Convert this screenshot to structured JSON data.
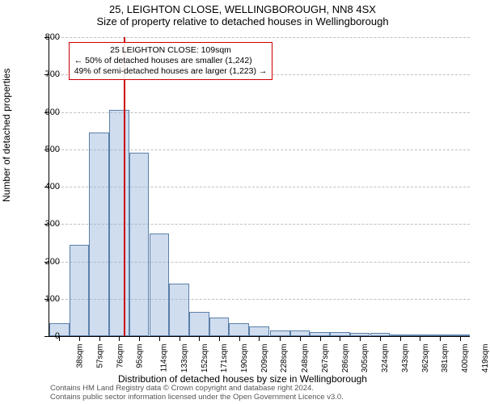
{
  "title": "25, LEIGHTON CLOSE, WELLINGBOROUGH, NN8 4SX",
  "subtitle": "Size of property relative to detached houses in Wellingborough",
  "y_axis_title": "Number of detached properties",
  "x_axis_title": "Distribution of detached houses by size in Wellingborough",
  "footer_line1": "Contains HM Land Registry data © Crown copyright and database right 2024.",
  "footer_line2": "Contains public sector information licensed under the Open Government Licence v3.0.",
  "annotation": {
    "line1": "25 LEIGHTON CLOSE: 109sqm",
    "line2": "← 50% of detached houses are smaller (1,242)",
    "line3": "49% of semi-detached houses are larger (1,223) →"
  },
  "vline_value_sqm": 109,
  "vline_color": "#cc0000",
  "chart": {
    "type": "histogram",
    "bar_fill": "rgba(150,180,220,0.45)",
    "bar_border": "#5a7fa8",
    "background_color": "#ffffff",
    "grid_color": "#c0c0c0",
    "ylim": [
      0,
      800
    ],
    "yticks": [
      0,
      100,
      200,
      300,
      400,
      500,
      600,
      700,
      800
    ],
    "x_unit": "sqm",
    "bin_width_sqm": 19,
    "bins": [
      {
        "lo": 38,
        "count": 35
      },
      {
        "lo": 57,
        "count": 245
      },
      {
        "lo": 76,
        "count": 545
      },
      {
        "lo": 95,
        "count": 605
      },
      {
        "lo": 114,
        "count": 490
      },
      {
        "lo": 133,
        "count": 275
      },
      {
        "lo": 152,
        "count": 140
      },
      {
        "lo": 171,
        "count": 65
      },
      {
        "lo": 190,
        "count": 50
      },
      {
        "lo": 209,
        "count": 35
      },
      {
        "lo": 228,
        "count": 25
      },
      {
        "lo": 248,
        "count": 15
      },
      {
        "lo": 267,
        "count": 15
      },
      {
        "lo": 286,
        "count": 10
      },
      {
        "lo": 305,
        "count": 10
      },
      {
        "lo": 324,
        "count": 8
      },
      {
        "lo": 343,
        "count": 8
      },
      {
        "lo": 362,
        "count": 0
      },
      {
        "lo": 381,
        "count": 5
      },
      {
        "lo": 400,
        "count": 5
      },
      {
        "lo": 419,
        "count": 0
      }
    ],
    "title_fontsize": 13,
    "label_fontsize": 12,
    "tick_fontsize": 11
  }
}
